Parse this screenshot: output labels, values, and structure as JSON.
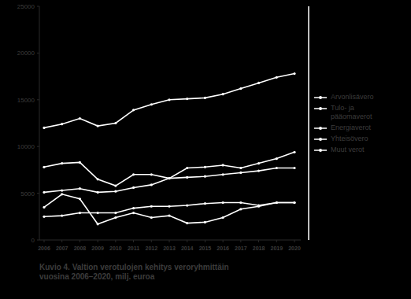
{
  "chart_data": {
    "type": "line",
    "title": "Kuvio 4. Valtion verotulojen kehitys veroryhmittäin vuosina 2006–2020, milj. euroa",
    "categories": [
      "2006",
      "2007",
      "2008",
      "2009",
      "2010",
      "2011",
      "2012",
      "2013",
      "2014",
      "2015",
      "2016",
      "2017",
      "2018",
      "2019",
      "2020"
    ],
    "ylim": [
      0,
      25000
    ],
    "yticks": [
      0,
      5000,
      10000,
      15000,
      20000,
      25000
    ],
    "grid": false,
    "legend": "right",
    "series": [
      {
        "name": "Arvonlisävero",
        "color": "#ffffff",
        "marker": "circle",
        "values": [
          12000,
          12400,
          13000,
          12200,
          12500,
          13900,
          14500,
          15000,
          15100,
          15200,
          15600,
          16200,
          16800,
          17400,
          17800
        ]
      },
      {
        "name": "Tulo- ja pääomaverot",
        "color": "#ffffff",
        "marker": "circle",
        "values": [
          7800,
          8200,
          8300,
          6500,
          5800,
          7000,
          7000,
          6600,
          7700,
          7800,
          8000,
          7700,
          8200,
          8700,
          9400
        ]
      },
      {
        "name": "Energiaverot",
        "color": "#ffffff",
        "marker": "circle",
        "values": [
          5100,
          5300,
          5500,
          5100,
          5200,
          5600,
          5900,
          6600,
          6700,
          6800,
          7000,
          7200,
          7400,
          7700,
          7700
        ]
      },
      {
        "name": "Yhteisövero",
        "color": "#ffffff",
        "marker": "circle",
        "values": [
          3500,
          4900,
          4400,
          1700,
          2400,
          2900,
          2400,
          2600,
          1800,
          1900,
          2400,
          3300,
          3600,
          4000,
          4000
        ]
      },
      {
        "name": "Muut verot",
        "color": "#ffffff",
        "marker": "circle",
        "values": [
          2500,
          2600,
          2900,
          2900,
          2900,
          3400,
          3600,
          3600,
          3700,
          3900,
          4000,
          4000,
          3700,
          4000,
          4000
        ]
      }
    ]
  }
}
